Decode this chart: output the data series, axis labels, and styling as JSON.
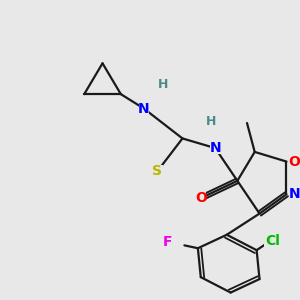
{
  "background_color": "#e8e8e8",
  "bond_color": "#1a1a1a",
  "atom_colors": {
    "N": "#0000ff",
    "O": "#ff0000",
    "S": "#b8b800",
    "F": "#ee00ee",
    "Cl": "#00bb00",
    "H": "#4a8a8a",
    "C": "#1a1a1a"
  },
  "figsize": [
    3.0,
    3.0
  ],
  "dpi": 100
}
